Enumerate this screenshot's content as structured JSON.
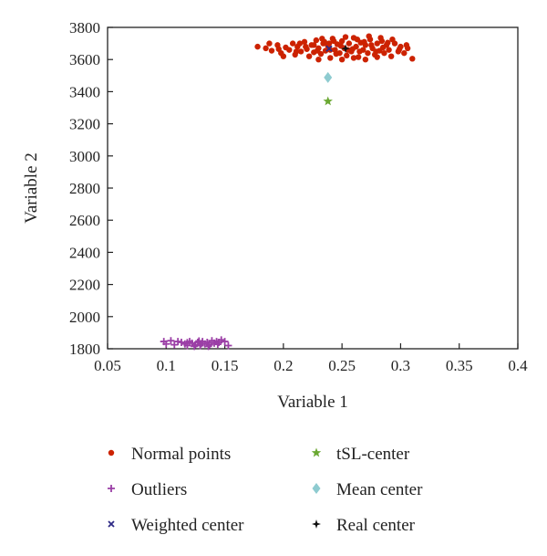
{
  "chart_data": {
    "type": "scatter",
    "xlabel": "Variable 1",
    "ylabel": "Variable 2",
    "xlim": [
      0.05,
      0.4
    ],
    "ylim": [
      1800,
      3800
    ],
    "xticks": [
      "0.05",
      "0.1",
      "0.15",
      "0.2",
      "0.25",
      "0.3",
      "0.35",
      "0.4"
    ],
    "yticks": [
      "1800",
      "2000",
      "2200",
      "2400",
      "2600",
      "2800",
      "3000",
      "3200",
      "3400",
      "3600",
      "3800"
    ],
    "grid": false,
    "legend_position": "bottom",
    "series": [
      {
        "name": "Normal points",
        "marker": "dot",
        "color": "#cc2200",
        "points": [
          [
            0.178,
            3680
          ],
          [
            0.185,
            3670
          ],
          [
            0.19,
            3655
          ],
          [
            0.195,
            3690
          ],
          [
            0.198,
            3640
          ],
          [
            0.202,
            3675
          ],
          [
            0.205,
            3660
          ],
          [
            0.208,
            3700
          ],
          [
            0.21,
            3630
          ],
          [
            0.212,
            3680
          ],
          [
            0.215,
            3650
          ],
          [
            0.218,
            3710
          ],
          [
            0.22,
            3665
          ],
          [
            0.222,
            3620
          ],
          [
            0.224,
            3690
          ],
          [
            0.226,
            3645
          ],
          [
            0.228,
            3720
          ],
          [
            0.23,
            3670
          ],
          [
            0.232,
            3635
          ],
          [
            0.234,
            3700
          ],
          [
            0.236,
            3655
          ],
          [
            0.238,
            3685
          ],
          [
            0.24,
            3610
          ],
          [
            0.242,
            3730
          ],
          [
            0.244,
            3660
          ],
          [
            0.246,
            3695
          ],
          [
            0.248,
            3640
          ],
          [
            0.25,
            3715
          ],
          [
            0.252,
            3670
          ],
          [
            0.254,
            3625
          ],
          [
            0.256,
            3700
          ],
          [
            0.258,
            3650
          ],
          [
            0.26,
            3735
          ],
          [
            0.262,
            3680
          ],
          [
            0.264,
            3615
          ],
          [
            0.266,
            3705
          ],
          [
            0.268,
            3660
          ],
          [
            0.27,
            3690
          ],
          [
            0.272,
            3640
          ],
          [
            0.274,
            3725
          ],
          [
            0.276,
            3670
          ],
          [
            0.278,
            3630
          ],
          [
            0.28,
            3700
          ],
          [
            0.282,
            3655
          ],
          [
            0.284,
            3715
          ],
          [
            0.286,
            3640
          ],
          [
            0.288,
            3690
          ],
          [
            0.29,
            3660
          ],
          [
            0.292,
            3620
          ],
          [
            0.295,
            3700
          ],
          [
            0.298,
            3650
          ],
          [
            0.3,
            3680
          ],
          [
            0.303,
            3640
          ],
          [
            0.306,
            3670
          ],
          [
            0.31,
            3605
          ],
          [
            0.2,
            3620
          ],
          [
            0.214,
            3700
          ],
          [
            0.226,
            3690
          ],
          [
            0.24,
            3660
          ],
          [
            0.255,
            3660
          ],
          [
            0.265,
            3650
          ],
          [
            0.275,
            3690
          ],
          [
            0.285,
            3675
          ],
          [
            0.245,
            3635
          ],
          [
            0.235,
            3710
          ],
          [
            0.25,
            3600
          ],
          [
            0.26,
            3610
          ],
          [
            0.27,
            3600
          ],
          [
            0.28,
            3615
          ],
          [
            0.23,
            3600
          ],
          [
            0.188,
            3700
          ],
          [
            0.196,
            3665
          ],
          [
            0.211,
            3650
          ],
          [
            0.219,
            3680
          ],
          [
            0.229,
            3655
          ],
          [
            0.239,
            3700
          ],
          [
            0.249,
            3685
          ],
          [
            0.259,
            3665
          ],
          [
            0.269,
            3710
          ],
          [
            0.279,
            3650
          ],
          [
            0.289,
            3705
          ],
          [
            0.299,
            3665
          ],
          [
            0.305,
            3690
          ],
          [
            0.253,
            3740
          ],
          [
            0.263,
            3725
          ],
          [
            0.273,
            3745
          ],
          [
            0.243,
            3715
          ],
          [
            0.283,
            3735
          ],
          [
            0.293,
            3725
          ],
          [
            0.233,
            3730
          ]
        ]
      },
      {
        "name": "Outliers",
        "marker": "plus",
        "color": "#9b3fa6",
        "points": [
          [
            0.098,
            1845
          ],
          [
            0.1,
            1830
          ],
          [
            0.104,
            1850
          ],
          [
            0.107,
            1825
          ],
          [
            0.11,
            1845
          ],
          [
            0.113,
            1840
          ],
          [
            0.116,
            1830
          ],
          [
            0.118,
            1820
          ],
          [
            0.12,
            1845
          ],
          [
            0.122,
            1835
          ],
          [
            0.125,
            1825
          ],
          [
            0.127,
            1840
          ],
          [
            0.129,
            1820
          ],
          [
            0.131,
            1845
          ],
          [
            0.133,
            1830
          ],
          [
            0.135,
            1840
          ],
          [
            0.137,
            1825
          ],
          [
            0.139,
            1850
          ],
          [
            0.141,
            1835
          ],
          [
            0.143,
            1845
          ],
          [
            0.145,
            1840
          ],
          [
            0.147,
            1855
          ],
          [
            0.15,
            1845
          ],
          [
            0.153,
            1820
          ],
          [
            0.124,
            1815
          ],
          [
            0.136,
            1815
          ],
          [
            0.13,
            1832
          ],
          [
            0.144,
            1828
          ],
          [
            0.118,
            1838
          ],
          [
            0.128,
            1848
          ]
        ]
      },
      {
        "name": "Weighted center",
        "marker": "x",
        "color": "#2e2a86",
        "points": [
          [
            0.239,
            3668
          ]
        ]
      },
      {
        "name": "tSL-center",
        "marker": "star",
        "color": "#6aa832",
        "points": [
          [
            0.238,
            3340
          ]
        ]
      },
      {
        "name": "Mean center",
        "marker": "diamond",
        "color": "#8ecbd0",
        "points": [
          [
            0.238,
            3488
          ]
        ]
      },
      {
        "name": "Real center",
        "marker": "star4",
        "color": "#111111",
        "points": [
          [
            0.253,
            3668
          ]
        ]
      }
    ],
    "legend": [
      {
        "name": "Normal points",
        "marker": "dot",
        "color": "#cc2200"
      },
      {
        "name": "tSL-center",
        "marker": "star",
        "color": "#6aa832"
      },
      {
        "name": "Outliers",
        "marker": "plus",
        "color": "#9b3fa6"
      },
      {
        "name": "Mean center",
        "marker": "diamond",
        "color": "#8ecbd0"
      },
      {
        "name": "Weighted center",
        "marker": "x",
        "color": "#2e2a86"
      },
      {
        "name": "Real center",
        "marker": "star4",
        "color": "#111111"
      }
    ]
  }
}
